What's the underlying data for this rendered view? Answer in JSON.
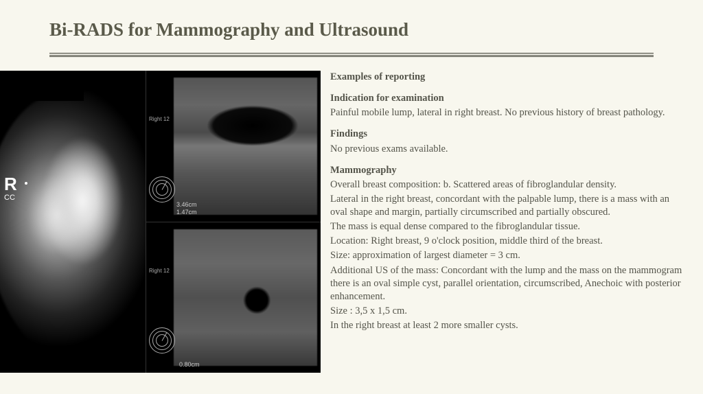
{
  "title": "Bi-RADS for Mammography and Ultrasound",
  "image_labels": {
    "side_marker": "R",
    "view": "CC",
    "us1_label": "Right 12",
    "us1_nums": "3\n9",
    "us1_dim": "3.46cm\n1.47cm",
    "us2_label": "Right 12",
    "us2_nums": "3\n9",
    "us2_dim": "0.80cm"
  },
  "report": {
    "h_examples": "Examples of reporting",
    "h_indication": "Indication for examination",
    "indication": "Painful mobile lump, lateral in right breast. No previous history of breast pathology.",
    "h_findings": "Findings",
    "findings": "No previous exams available.",
    "h_mammo": "Mammography",
    "mammo1": "Overall breast composition: b. Scattered areas of fibroglandular density.",
    "mammo2": "Lateral in the right breast, concordant with the palpable lump, there is a mass with an oval shape and margin, partially circumscribed and partially obscured.",
    "mammo3": "The mass is equal dense compared to the fibroglandular tissue.",
    "mammo4": "Location: Right breast, 9 o'clock position, middle third of the breast.",
    "mammo5": "Size: approximation of largest diameter = 3 cm.",
    "mammo6": "Additional US of the mass: Concordant with the lump and the mass on the mammogram there is an oval simple cyst, parallel orientation, circumscribed, Anechoic with posterior enhancement.",
    "mammo7": "Size : 3,5 x 1,5 cm.",
    "mammo8": "In the right breast at least 2 more smaller cysts."
  },
  "colors": {
    "background": "#f8f7ee",
    "text": "#54544a",
    "title": "#5a5a4a",
    "rule": "#3a3a30"
  }
}
